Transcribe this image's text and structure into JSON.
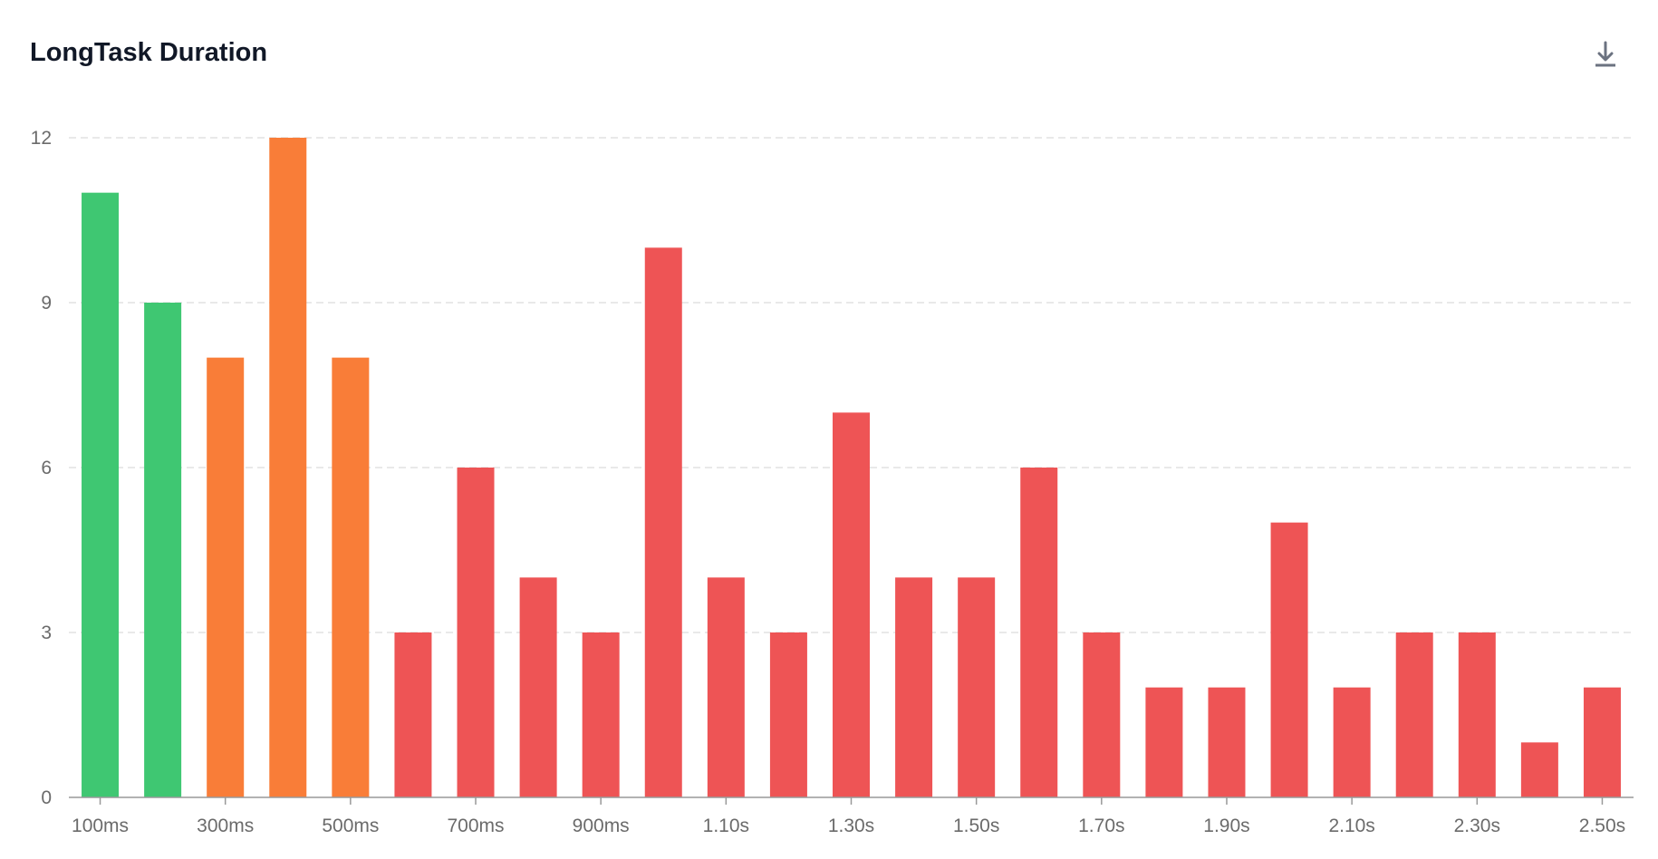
{
  "chart_data": {
    "type": "bar",
    "title": "LongTask Duration",
    "x_tick_labels": [
      "100ms",
      "300ms",
      "500ms",
      "700ms",
      "900ms",
      "1.10s",
      "1.30s",
      "1.50s",
      "1.70s",
      "1.90s",
      "2.10s",
      "2.30s",
      "2.50s"
    ],
    "values": [
      11,
      9,
      8,
      12,
      8,
      3,
      6,
      4,
      3,
      10,
      4,
      3,
      7,
      4,
      4,
      6,
      3,
      2,
      2,
      5,
      2,
      3,
      3,
      1,
      2
    ],
    "bar_colors": [
      "#3fc772",
      "#3fc772",
      "#f97d38",
      "#f97d38",
      "#f97d38",
      "#ee5455",
      "#ee5455",
      "#ee5455",
      "#ee5455",
      "#ee5455",
      "#ee5455",
      "#ee5455",
      "#ee5455",
      "#ee5455",
      "#ee5455",
      "#ee5455",
      "#ee5455",
      "#ee5455",
      "#ee5455",
      "#ee5455",
      "#ee5455",
      "#ee5455",
      "#ee5455",
      "#ee5455",
      "#ee5455"
    ],
    "ylim": [
      0,
      12
    ],
    "y_ticks": [
      0,
      3,
      6,
      9,
      12
    ],
    "grid": true,
    "xlabel": "",
    "ylabel": ""
  },
  "toolbar": {
    "download_icon": "download-icon"
  }
}
